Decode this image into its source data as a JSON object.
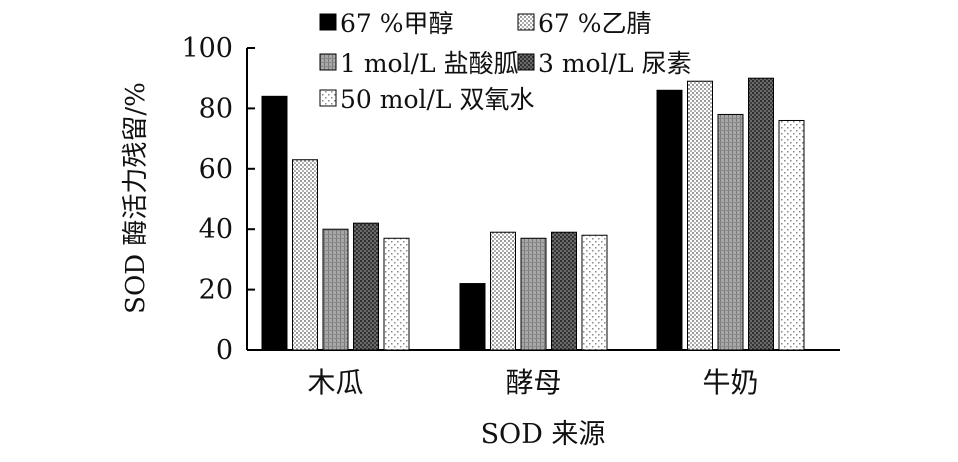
{
  "chart_data": {
    "type": "bar",
    "title": "",
    "xlabel": "SOD 来源",
    "ylabel": "SOD 酶活力残留/%",
    "ylim": [
      0,
      100
    ],
    "yticks": [
      0,
      20,
      40,
      60,
      80,
      100
    ],
    "grid": false,
    "legend_position": "top-center",
    "categories": [
      "木瓜",
      "酵母",
      "牛奶"
    ],
    "series": [
      {
        "name": "67 %甲醇",
        "pattern": "solid-black",
        "values": [
          84,
          22,
          86
        ]
      },
      {
        "name": "67 %乙腈",
        "pattern": "fine-dots",
        "values": [
          63,
          39,
          89
        ]
      },
      {
        "name": "1 mol/L 盐酸胍",
        "pattern": "gray-hatch",
        "values": [
          40,
          37,
          78
        ]
      },
      {
        "name": "3 mol/L 尿素",
        "pattern": "dark-check",
        "values": [
          42,
          39,
          90
        ]
      },
      {
        "name": "50 mol/L 双氧水",
        "pattern": "sparse-dots",
        "values": [
          37,
          38,
          76
        ]
      }
    ]
  }
}
